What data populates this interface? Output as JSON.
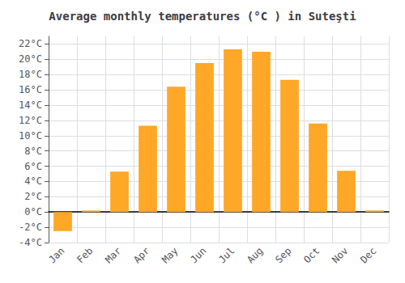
{
  "chart_data": {
    "type": "bar",
    "title": "Average monthly temperatures (°C ) in Suteşti",
    "categories": [
      "Jan",
      "Feb",
      "Mar",
      "Apr",
      "May",
      "Jun",
      "Jul",
      "Aug",
      "Sep",
      "Oct",
      "Nov",
      "Dec"
    ],
    "values": [
      -2.5,
      0.2,
      5.3,
      11.3,
      16.4,
      19.5,
      21.3,
      21.0,
      17.3,
      11.6,
      5.4,
      0.2
    ],
    "color": "#FFA726",
    "ylim": [
      -4,
      23
    ],
    "yticks": [
      {
        "value": -4,
        "label": "-4°C"
      },
      {
        "value": -2,
        "label": "-2°C"
      },
      {
        "value": 0,
        "label": "0°C"
      },
      {
        "value": 2,
        "label": "2°C"
      },
      {
        "value": 4,
        "label": "4°C"
      },
      {
        "value": 6,
        "label": "6°C"
      },
      {
        "value": 8,
        "label": "8°C"
      },
      {
        "value": 10,
        "label": "10°C"
      },
      {
        "value": 12,
        "label": "12°C"
      },
      {
        "value": 14,
        "label": "14°C"
      },
      {
        "value": 16,
        "label": "16°C"
      },
      {
        "value": 18,
        "label": "18°C"
      },
      {
        "value": 20,
        "label": "20°C"
      },
      {
        "value": 22,
        "label": "22°C"
      }
    ],
    "grid": true
  }
}
